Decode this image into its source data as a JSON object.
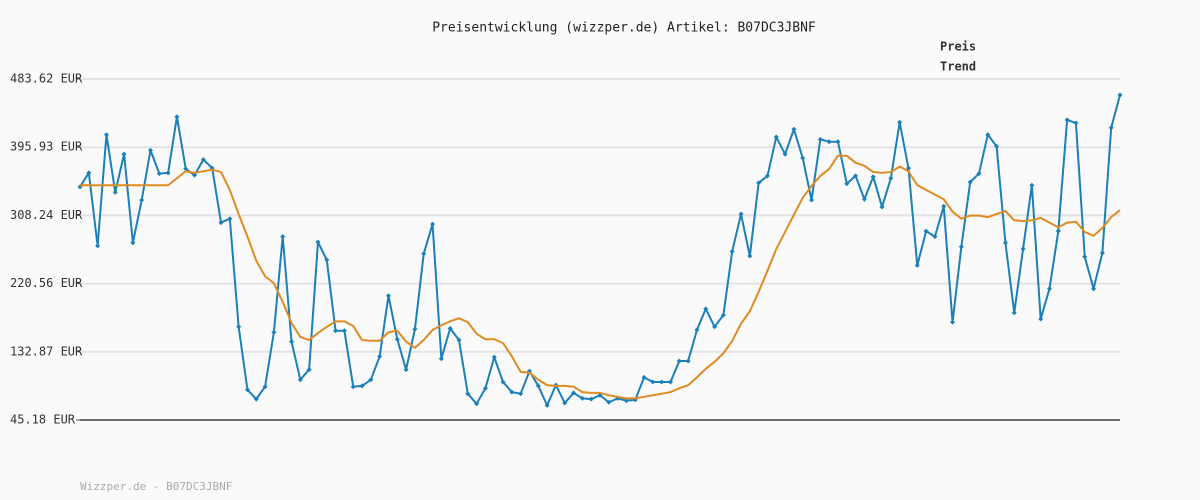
{
  "chart_data": {
    "type": "line",
    "title": "Preisentwicklung (wizzper.de) Artikel: B07DC3JBNF",
    "footer": "Wizzper.de - B07DC3JBNF",
    "grid": true,
    "legend": "top-right",
    "markers": [
      true,
      false
    ],
    "categories": [
      null,
      null,
      null,
      null,
      null,
      null,
      null,
      null,
      null,
      null,
      null,
      null,
      null,
      null,
      null,
      null,
      null,
      null,
      null,
      null,
      null,
      null,
      null,
      null,
      null,
      null,
      null,
      null,
      null,
      null,
      null,
      null,
      null,
      null,
      null,
      null,
      null,
      null,
      null,
      null,
      null,
      null,
      null,
      null,
      null,
      null,
      null,
      null,
      null,
      null,
      null,
      null,
      null,
      null,
      null,
      null,
      null,
      null,
      null,
      null,
      null,
      null,
      null,
      null,
      null,
      null,
      null,
      null,
      null,
      null,
      null,
      null,
      null,
      null,
      null,
      null,
      null,
      null,
      null,
      null,
      null,
      null,
      null,
      null,
      null,
      null,
      null,
      null,
      null,
      null,
      null,
      null,
      null,
      null,
      null,
      null,
      null,
      null,
      null,
      null,
      null,
      null,
      null,
      null,
      null,
      null,
      null,
      null,
      null,
      null,
      null,
      null,
      null,
      null,
      null,
      null,
      null,
      null,
      null
    ],
    "ylim": [
      45.18,
      483.62
    ],
    "yticks": [
      {
        "value": 45.18,
        "label": "45.18 EUR"
      },
      {
        "value": 132.87,
        "label": "132.87 EUR"
      },
      {
        "value": 220.56,
        "label": "220.56 EUR"
      },
      {
        "value": 308.24,
        "label": "308.24 EUR"
      },
      {
        "value": 395.93,
        "label": "395.93 EUR"
      },
      {
        "value": 483.62,
        "label": "483.62 EUR"
      }
    ],
    "series": [
      {
        "name": "Preis",
        "color": "#1b80b9",
        "values": [
          345,
          363,
          269,
          412,
          338,
          387,
          273,
          328,
          392,
          362,
          363,
          435,
          368,
          360,
          380,
          369,
          299,
          304,
          165,
          84,
          72,
          88,
          158,
          281,
          146,
          97,
          110,
          274,
          251,
          160,
          160,
          88,
          89,
          97,
          127,
          205,
          149,
          110,
          162,
          259,
          297,
          124,
          163,
          148,
          79,
          66,
          86,
          126,
          94,
          81,
          79,
          108,
          89,
          64,
          90,
          67,
          80,
          73,
          72,
          77,
          68,
          73,
          70,
          71,
          100,
          94,
          94,
          94,
          121,
          121,
          161,
          188,
          165,
          180,
          262,
          310,
          256,
          350,
          359,
          409,
          387,
          419,
          382,
          328,
          406,
          403,
          403,
          349,
          359,
          329,
          358,
          319,
          356,
          428,
          369,
          244,
          288,
          281,
          320,
          171,
          268,
          351,
          362,
          412,
          397,
          273,
          183,
          265,
          347,
          175,
          214,
          288,
          431,
          427,
          255,
          214,
          260,
          421,
          463
        ]
      },
      {
        "name": "Trend",
        "color": "#e08a22",
        "values": [
          347,
          347,
          347,
          347,
          347,
          347,
          347,
          347,
          347,
          347,
          347,
          356,
          365,
          363,
          365,
          367,
          364,
          341,
          310,
          281,
          250,
          230,
          221,
          197,
          170,
          152,
          148,
          157,
          165,
          172,
          172,
          166,
          148,
          147,
          147,
          158,
          160,
          146,
          138,
          148,
          161,
          167,
          172,
          176,
          171,
          156,
          149,
          149,
          144,
          127,
          107,
          106,
          97,
          90,
          89,
          89,
          88,
          81,
          80,
          80,
          77,
          75,
          73,
          73,
          75,
          77,
          79,
          81,
          86,
          90,
          100,
          111,
          120,
          131,
          147,
          169,
          185,
          210,
          237,
          265,
          287,
          309,
          331,
          346,
          359,
          368,
          385,
          385,
          376,
          372,
          364,
          363,
          364,
          371,
          365,
          347,
          341,
          335,
          329,
          313,
          304,
          308,
          308,
          306,
          310,
          314,
          302,
          301,
          302,
          305,
          299,
          293,
          299,
          300,
          287,
          282,
          292,
          306,
          315
        ]
      }
    ]
  }
}
